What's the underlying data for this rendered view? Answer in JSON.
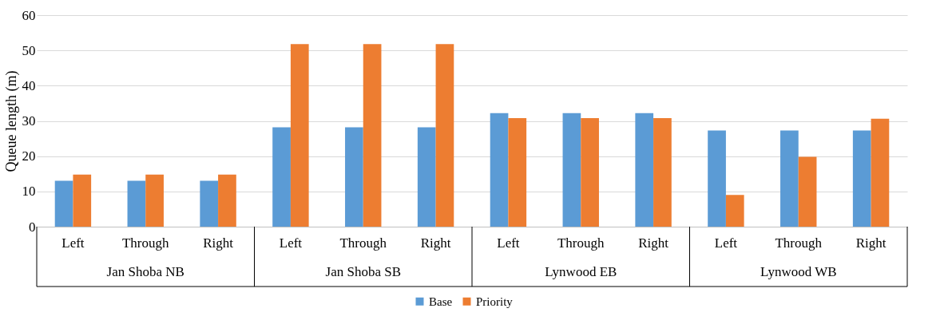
{
  "chart_data": {
    "type": "bar",
    "ylabel": "Queue length (m)",
    "categories": [
      "Left",
      "Through",
      "Right",
      "Left",
      "Through",
      "Right",
      "Left",
      "Through",
      "Right",
      "Left",
      "Through",
      "Right"
    ],
    "series": [
      {
        "name": "Base",
        "color": "#5b9bd5",
        "values": [
          13,
          13,
          13,
          28.2,
          28.2,
          28.2,
          32.2,
          32.2,
          32.2,
          27.3,
          27.3,
          27.3
        ]
      },
      {
        "name": "Priority",
        "color": "#ed7d31",
        "values": [
          14.8,
          14.8,
          14.8,
          51.8,
          51.8,
          51.8,
          30.8,
          30.8,
          30.8,
          9,
          19.8,
          30.6
        ]
      }
    ],
    "annotations": [
      "Jan Shoba NB",
      "Jan Shoba SB",
      "Lynwood EB",
      "Lynwood WB"
    ],
    "ylim": [
      0,
      60
    ],
    "yticks": [
      0,
      10,
      20,
      30,
      40,
      50,
      60
    ],
    "grid": "y",
    "legend": "bottom"
  }
}
